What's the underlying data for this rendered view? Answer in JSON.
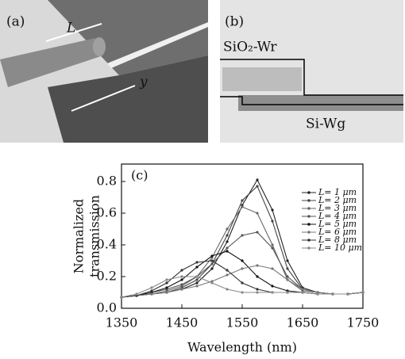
{
  "panel_a": {
    "label": "(a)",
    "length_label": "L",
    "axis_label": "y"
  },
  "panel_b": {
    "label": "(b)",
    "wire_label": "SiO₂-Wr",
    "guide_label": "Si-Wg"
  },
  "chart_data": {
    "type": "line",
    "panel_label": "(c)",
    "xlabel": "Wavelength (nm)",
    "ylabel": [
      "Normalized",
      "transmission"
    ],
    "x": [
      1350,
      1375,
      1400,
      1425,
      1450,
      1475,
      1500,
      1525,
      1550,
      1575,
      1600,
      1625,
      1650,
      1675,
      1700,
      1725,
      1750
    ],
    "xlim": [
      1350,
      1750
    ],
    "xticks": [
      1350,
      1450,
      1550,
      1650,
      1750
    ],
    "ylim": [
      0,
      0.91
    ],
    "yticks": [
      {
        "value": 0,
        "label": "0.0"
      },
      0.2,
      0.4,
      0.6,
      0.8
    ],
    "legend": "upper right",
    "series": [
      {
        "name": "L= 1 μm",
        "color": "#222222",
        "values": [
          0.07,
          0.08,
          0.09,
          0.1,
          0.12,
          0.16,
          0.25,
          0.42,
          0.65,
          0.81,
          0.62,
          0.3,
          0.13,
          0.1,
          0.09,
          0.09,
          0.1
        ]
      },
      {
        "name": "L= 2 μm",
        "color": "#444444",
        "values": [
          0.07,
          0.08,
          0.09,
          0.1,
          0.13,
          0.18,
          0.28,
          0.46,
          0.68,
          0.77,
          0.55,
          0.25,
          0.12,
          0.1,
          0.09,
          0.09,
          0.1
        ]
      },
      {
        "name": "L= 3 μm",
        "color": "#666666",
        "values": [
          0.07,
          0.08,
          0.09,
          0.11,
          0.14,
          0.2,
          0.32,
          0.5,
          0.64,
          0.6,
          0.4,
          0.18,
          0.11,
          0.1,
          0.09,
          0.09,
          0.1
        ]
      },
      {
        "name": "L= 4 μm",
        "color": "#555555",
        "values": [
          0.07,
          0.08,
          0.1,
          0.12,
          0.15,
          0.2,
          0.28,
          0.38,
          0.46,
          0.48,
          0.38,
          0.2,
          0.12,
          0.1,
          0.09,
          0.09,
          0.1
        ]
      },
      {
        "name": "L= 5 μm",
        "color": "#111111",
        "values": [
          0.07,
          0.08,
          0.1,
          0.13,
          0.18,
          0.26,
          0.33,
          0.36,
          0.3,
          0.2,
          0.14,
          0.11,
          0.1,
          0.09,
          0.09,
          0.09,
          0.1
        ]
      },
      {
        "name": "L= 6 μm",
        "color": "#777777",
        "values": [
          0.07,
          0.08,
          0.09,
          0.1,
          0.12,
          0.14,
          0.17,
          0.21,
          0.25,
          0.27,
          0.25,
          0.18,
          0.12,
          0.1,
          0.09,
          0.09,
          0.1
        ]
      },
      {
        "name": "L= 8 μm",
        "color": "#333333",
        "values": [
          0.07,
          0.08,
          0.11,
          0.16,
          0.24,
          0.29,
          0.3,
          0.24,
          0.16,
          0.12,
          0.1,
          0.1,
          0.1,
          0.09,
          0.09,
          0.09,
          0.1
        ]
      },
      {
        "name": "L= 10 μm",
        "color": "#888888",
        "values": [
          0.07,
          0.09,
          0.13,
          0.18,
          0.2,
          0.2,
          0.16,
          0.12,
          0.1,
          0.1,
          0.1,
          0.1,
          0.1,
          0.09,
          0.09,
          0.09,
          0.1
        ]
      }
    ]
  }
}
